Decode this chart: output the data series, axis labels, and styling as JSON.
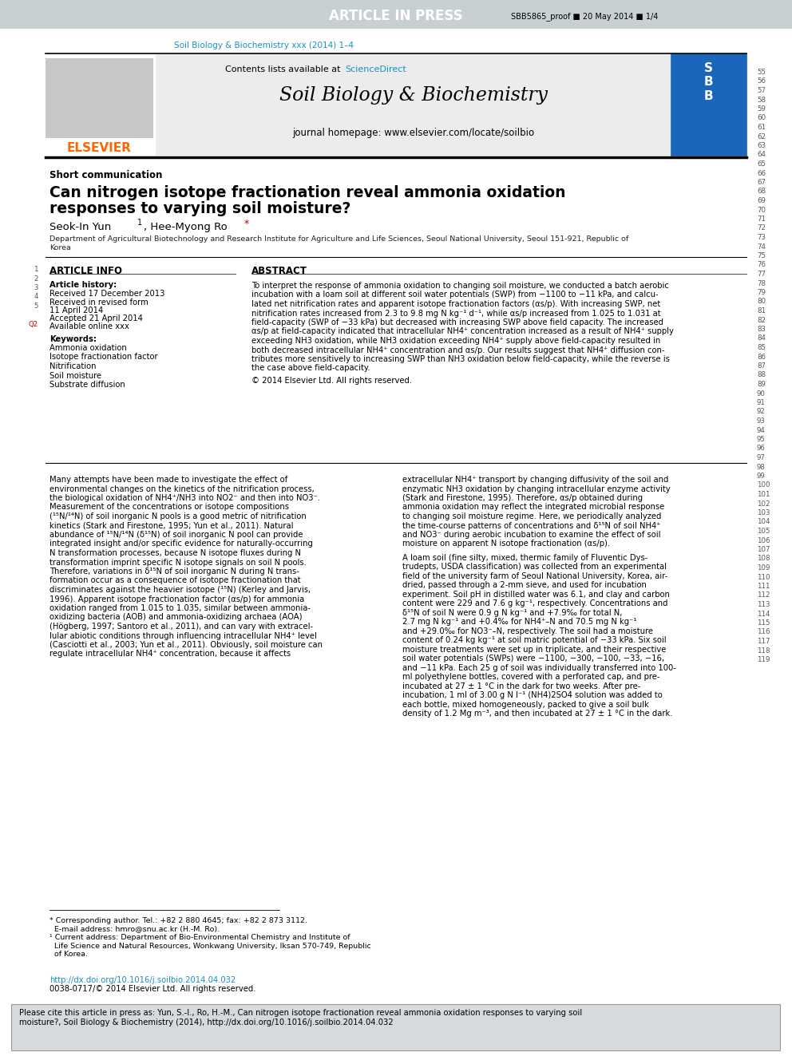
{
  "fig_width": 9.92,
  "fig_height": 13.23,
  "dpi": 100,
  "header_bar_color": "#c8d0d4",
  "header_bar_text": "ARTICLE IN PRESS",
  "header_proof_text": "SBB5865_proof ■ 20 May 2014 ■ 1/4",
  "journal_url_text": "Soil Biology & Biochemistry xxx (2014) 1–4",
  "journal_title": "Soil Biology & Biochemistry",
  "journal_homepage": "journal homepage: www.elsevier.com/locate/soilbio",
  "contents_text_plain": "Contents lists available at ",
  "contents_text_blue": "ScienceDirect",
  "elsevier_text": "ELSEVIER",
  "elsevier_color": "#ff6600",
  "sciencedirect_color": "#1a8fc1",
  "journal_url_color": "#1a8fc1",
  "section_label": "Short communication",
  "article_title_line1": "Can nitrogen isotope fractionation reveal ammonia oxidation",
  "article_title_line2": "responses to varying soil moisture?",
  "article_info_title": "ARTICLE INFO",
  "abstract_title": "ABSTRACT",
  "article_history_label": "Article history:",
  "received_label": "Received 17 December 2013",
  "revised_label": "Received in revised form",
  "revised_date": "11 April 2014",
  "accepted_label": "Accepted 21 April 2014",
  "online_label": "Available online xxx",
  "keywords_label": "Keywords:",
  "keywords": [
    "Ammonia oxidation",
    "Isotope fractionation factor",
    "Nitrification",
    "Soil moisture",
    "Substrate diffusion"
  ],
  "abstract_text": "To interpret the response of ammonia oxidation to changing soil moisture, we conducted a batch aerobic incubation with a loam soil at different soil water potentials (SWP) from −1100 to −11 kPa, and calcu-lated net nitrification rates and apparent isotope fractionation factors (αs/p). With increasing SWP, net nitrification rates increased from 2.3 to 9.8 mg N kg⁻¹ d⁻¹, while αs/p increased from 1.025 to 1.031 at field-capacity (SWP of −33 kPa) but decreased with increasing SWP above field capacity. The increased αs/p at field-capacity indicated that intracellular NH4⁺ concentration increased as a result of NH4⁺ supply exceeding NH3 oxidation, while NH3 oxidation exceeding NH4⁺ supply above field-capacity resulted in both decreased intracellular NH4⁺ concentration and αs/p. Our results suggest that NH4⁺ diffusion con-tributes more sensitively to increasing SWP than NH3 oxidation below field-capacity, while the reverse is the case above field-capacity.",
  "copyright_text": "© 2014 Elsevier Ltd. All rights reserved.",
  "col1_lines": [
    "Many attempts have been made to investigate the effect of",
    "environmental changes on the kinetics of the nitrification process,",
    "the biological oxidation of NH4⁺/NH3 into NO2⁻ and then into NO3⁻.",
    "Measurement of the concentrations or isotope compositions",
    "(¹⁵N/¹⁴N) of soil inorganic N pools is a good metric of nitrification",
    "kinetics (Stark and Firestone, 1995; Yun et al., 2011). Natural",
    "abundance of ¹⁵N/¹⁴N (δ¹⁵N) of soil inorganic N pool can provide",
    "integrated insight and/or specific evidence for naturally-occurring",
    "N transformation processes, because N isotope fluxes during N",
    "transformation imprint specific N isotope signals on soil N pools.",
    "Therefore, variations in δ¹⁵N of soil inorganic N during N trans-",
    "formation occur as a consequence of isotope fractionation that",
    "discriminates against the heavier isotope (¹⁵N) (Kerley and Jarvis,",
    "1996). Apparent isotope fractionation factor (αs/p) for ammonia",
    "oxidation ranged from 1.015 to 1.035, similar between ammonia-",
    "oxidizing bacteria (AOB) and ammonia-oxidizing archaea (AOA)",
    "(Högberg, 1997; Santoro et al., 2011), and can vary with extracel-",
    "lular abiotic conditions through influencing intracellular NH4⁺ level",
    "(Casciotti et al., 2003; Yun et al., 2011). Obviously, soil moisture can",
    "regulate intracellular NH4⁺ concentration, because it affects"
  ],
  "col2_lines": [
    "extracellular NH4⁺ transport by changing diffusivity of the soil and",
    "enzymatic NH3 oxidation by changing intracellular enzyme activity",
    "(Stark and Firestone, 1995). Therefore, αs/p obtained during",
    "ammonia oxidation may reflect the integrated microbial response",
    "to changing soil moisture regime. Here, we periodically analyzed",
    "the time-course patterns of concentrations and δ¹⁵N of soil NH4⁺",
    "and NO3⁻ during aerobic incubation to examine the effect of soil",
    "moisture on apparent N isotope fractionation (αs/p).",
    "",
    "A loam soil (fine silty, mixed, thermic family of Fluventic Dys-",
    "trudepts, USDA classification) was collected from an experimental",
    "field of the university farm of Seoul National University, Korea, air-",
    "dried, passed through a 2-mm sieve, and used for incubation",
    "experiment. Soil pH in distilled water was 6.1, and clay and carbon",
    "content were 229 and 7.6 g kg⁻¹, respectively. Concentrations and",
    "δ¹⁵N of soil N were 0.9 g N kg⁻¹ and +7.9‰ for total N,",
    "2.7 mg N kg⁻¹ and +0.4‰ for NH4⁺–N and 70.5 mg N kg⁻¹",
    "and +29.0‰ for NO3⁻–N, respectively. The soil had a moisture",
    "content of 0.24 kg kg⁻¹ at soil matric potential of −33 kPa. Six soil",
    "moisture treatments were set up in triplicate, and their respective",
    "soil water potentials (SWPs) were −1100, −300, −100, −33, −16,",
    "and −11 kPa. Each 25 g of soil was individually transferred into 100-",
    "ml polyethylene bottles, covered with a perforated cap, and pre-",
    "incubated at 27 ± 1 °C in the dark for two weeks. After pre-",
    "incubation, 1 ml of 3.00 g N l⁻¹ (NH4)2SO4 solution was added to",
    "each bottle, mixed homogeneously, packed to give a soil bulk",
    "density of 1.2 Mg m⁻³, and then incubated at 27 ± 1 °C in the dark."
  ],
  "footnote_lines": [
    "* Corresponding author. Tel.: +82 2 880 4645; fax: +82 2 873 3112.",
    "  E-mail address: hmro@snu.ac.kr (H.-M. Ro).",
    "¹ Current address: Department of Bio-Environmental Chemistry and Institute of",
    "  Life Science and Natural Resources, Wonkwang University, Iksan 570-749, Republic",
    "  of Korea."
  ],
  "doi_text": "http://dx.doi.org/10.1016/j.soilbio.2014.04.032",
  "issn_text": "0038-0717/© 2014 Elsevier Ltd. All rights reserved.",
  "cite_box_line1": "Please cite this article in press as: Yun, S.-I., Ro, H.-M., Can nitrogen isotope fractionation reveal ammonia oxidation responses to varying soil",
  "cite_box_line2": "moisture?, Soil Biology & Biochemistry (2014), http://dx.doi.org/10.1016/j.soilbio.2014.04.032",
  "bg_color": "#ffffff",
  "header_text_color": "#ffffff",
  "body_text_color": "#000000",
  "author_asterisk_color": "#cc0000",
  "left_line_nums": [
    "1",
    "2",
    "3",
    "4",
    "5",
    "",
    "Q2",
    "",
    "",
    "",
    "",
    "",
    "",
    "",
    "",
    "",
    "",
    "",
    "",
    "",
    "",
    "",
    "",
    "",
    "",
    "",
    "",
    "",
    "",
    "",
    "",
    "",
    "",
    "",
    "",
    "",
    "",
    "",
    "",
    "",
    "",
    "",
    "",
    "",
    "",
    "",
    "",
    "",
    "",
    "",
    "",
    "",
    "",
    ""
  ],
  "right_line_nums": [
    "55",
    "56",
    "57",
    "58",
    "59",
    "60",
    "61",
    "62",
    "63",
    "64",
    "65",
    "66",
    "67",
    "68",
    "69",
    "70",
    "71",
    "72",
    "73",
    "74",
    "75",
    "76",
    "77",
    "78",
    "79",
    "80",
    "81",
    "82",
    "83",
    "84",
    "85",
    "86",
    "87",
    "88",
    "89",
    "90",
    "91",
    "92",
    "93",
    "94",
    "95",
    "96",
    "97",
    "98",
    "99",
    "100",
    "101",
    "102",
    "103",
    "104",
    "105",
    "106",
    "107",
    "108",
    "109",
    "110",
    "111",
    "112",
    "113",
    "114",
    "115",
    "116",
    "117",
    "118",
    "119"
  ]
}
